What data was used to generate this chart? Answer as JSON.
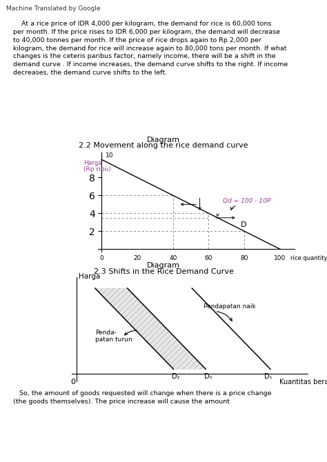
{
  "page_bg": "#ffffff",
  "watermark": "Machine Translated by Google",
  "body_text": "    At a rice price of IDR 4,000 per kilogram, the demand for rice is 60,000 tons\nper month. If the price rises to IDR 6,000 per kilogram, the demand will decrease\nto 40,000 tonnes per month. If the price of rice drops again to Rp 2,000 per\nkilogram, the demand for rice will increase again to 80,000 tons per month. If what\nchanges is the ceteris paribus factor, namely income, there will be a shift in the\ndemand curve . If income increases, the demand curve shifts to the right. If income\ndecreases, the demand curve shifts to the left.",
  "diag1_title_line1": "Diagram",
  "diag1_title_line2": "2.2 Movement along the rice demand curve",
  "diag1_ylabel_line1": "Harga",
  "diag1_ylabel_line2": "(Rp ribu)",
  "diag1_y10_label": "10",
  "diag1_yticks": [
    2,
    4,
    6,
    8
  ],
  "diag1_equation": "Qd = 100 - 10P",
  "diag1_D_label": "D",
  "diag2_title_line1": "Diagram",
  "diag2_title_line2": "2.3 Shifts in the Rice Demand Curve",
  "diag2_ylabel": "Harga",
  "diag2_xlabel": "Kuantitas beras",
  "diag2_D0_label": "D₀",
  "diag2_D1_label": "D₁",
  "diag2_D2_label": "D₂",
  "diag2_pendapatan_naik": "Pendapatan naik",
  "diag2_pendapatan_turun": "Penda-\npatan turun",
  "diag2_origin": "0",
  "footer_text": "   So, the amount of goods requested will change when there is a price change\n(the goods themselves). The price increase will cause the amount",
  "text_color": "#000000",
  "label_color_diag1": "#9b3a9b",
  "line_color": "#000000",
  "dotted_color": "#888888"
}
